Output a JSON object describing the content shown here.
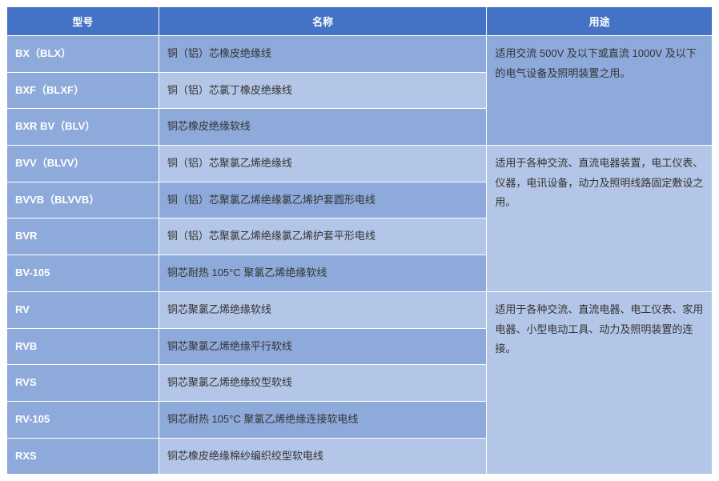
{
  "table": {
    "headers": {
      "model": "型号",
      "name": "名称",
      "usage": "用途"
    },
    "rows": [
      {
        "model": "BX（BLX）",
        "name": "铜（铝）芯橡皮绝缘线"
      },
      {
        "model": "BXF（BLXF）",
        "name": "铜（铝）芯氯丁橡皮绝缘线"
      },
      {
        "model": "BXR BV（BLV）",
        "name": "铜芯橡皮绝缘软线"
      },
      {
        "model": "BVV（BLVV）",
        "name": "铜（铝）芯聚氯乙烯绝缘线"
      },
      {
        "model": "BVVB（BLVVB）",
        "name": "铜（铝）芯聚氯乙烯绝缘氯乙烯护套圆形电线"
      },
      {
        "model": "BVR",
        "name": "铜（铝）芯聚氯乙烯绝缘氯乙烯护套平形电线"
      },
      {
        "model": "BV-105",
        "name": "铜芯耐热 105°C 聚氯乙烯绝缘软线"
      },
      {
        "model": "RV",
        "name": "铜芯聚氯乙烯绝缘软线"
      },
      {
        "model": "RVB",
        "name": "铜芯聚氯乙烯绝缘平行软线"
      },
      {
        "model": "RVS",
        "name": "铜芯聚氯乙烯绝缘绞型软线"
      },
      {
        "model": "RV-105",
        "name": "铜芯耐热 105°C 聚氯乙烯绝缘连接软电线"
      },
      {
        "model": "RXS",
        "name": "铜芯橡皮绝缘棉纱编织绞型软电线"
      }
    ],
    "usages": [
      "适用交流 500V 及以下或直流 1000V 及以下的电气设备及照明装置之用。",
      "适用于各种交流、直流电器装置，电工仪表、仪器，电讯设备，动力及照明线路固定敷设之用。",
      "适用于各种交流、直流电器、电工仪表、家用电器、小型电动工具、动力及照明装置的连接。"
    ],
    "colors": {
      "header_bg": "#4472c4",
      "header_text": "#ffffff",
      "row_dark": "#8eaadb",
      "row_light": "#b4c6e7",
      "border": "#ffffff",
      "text": "#333333"
    },
    "column_widths": {
      "model": 190,
      "name": 410,
      "usage": 282
    }
  }
}
